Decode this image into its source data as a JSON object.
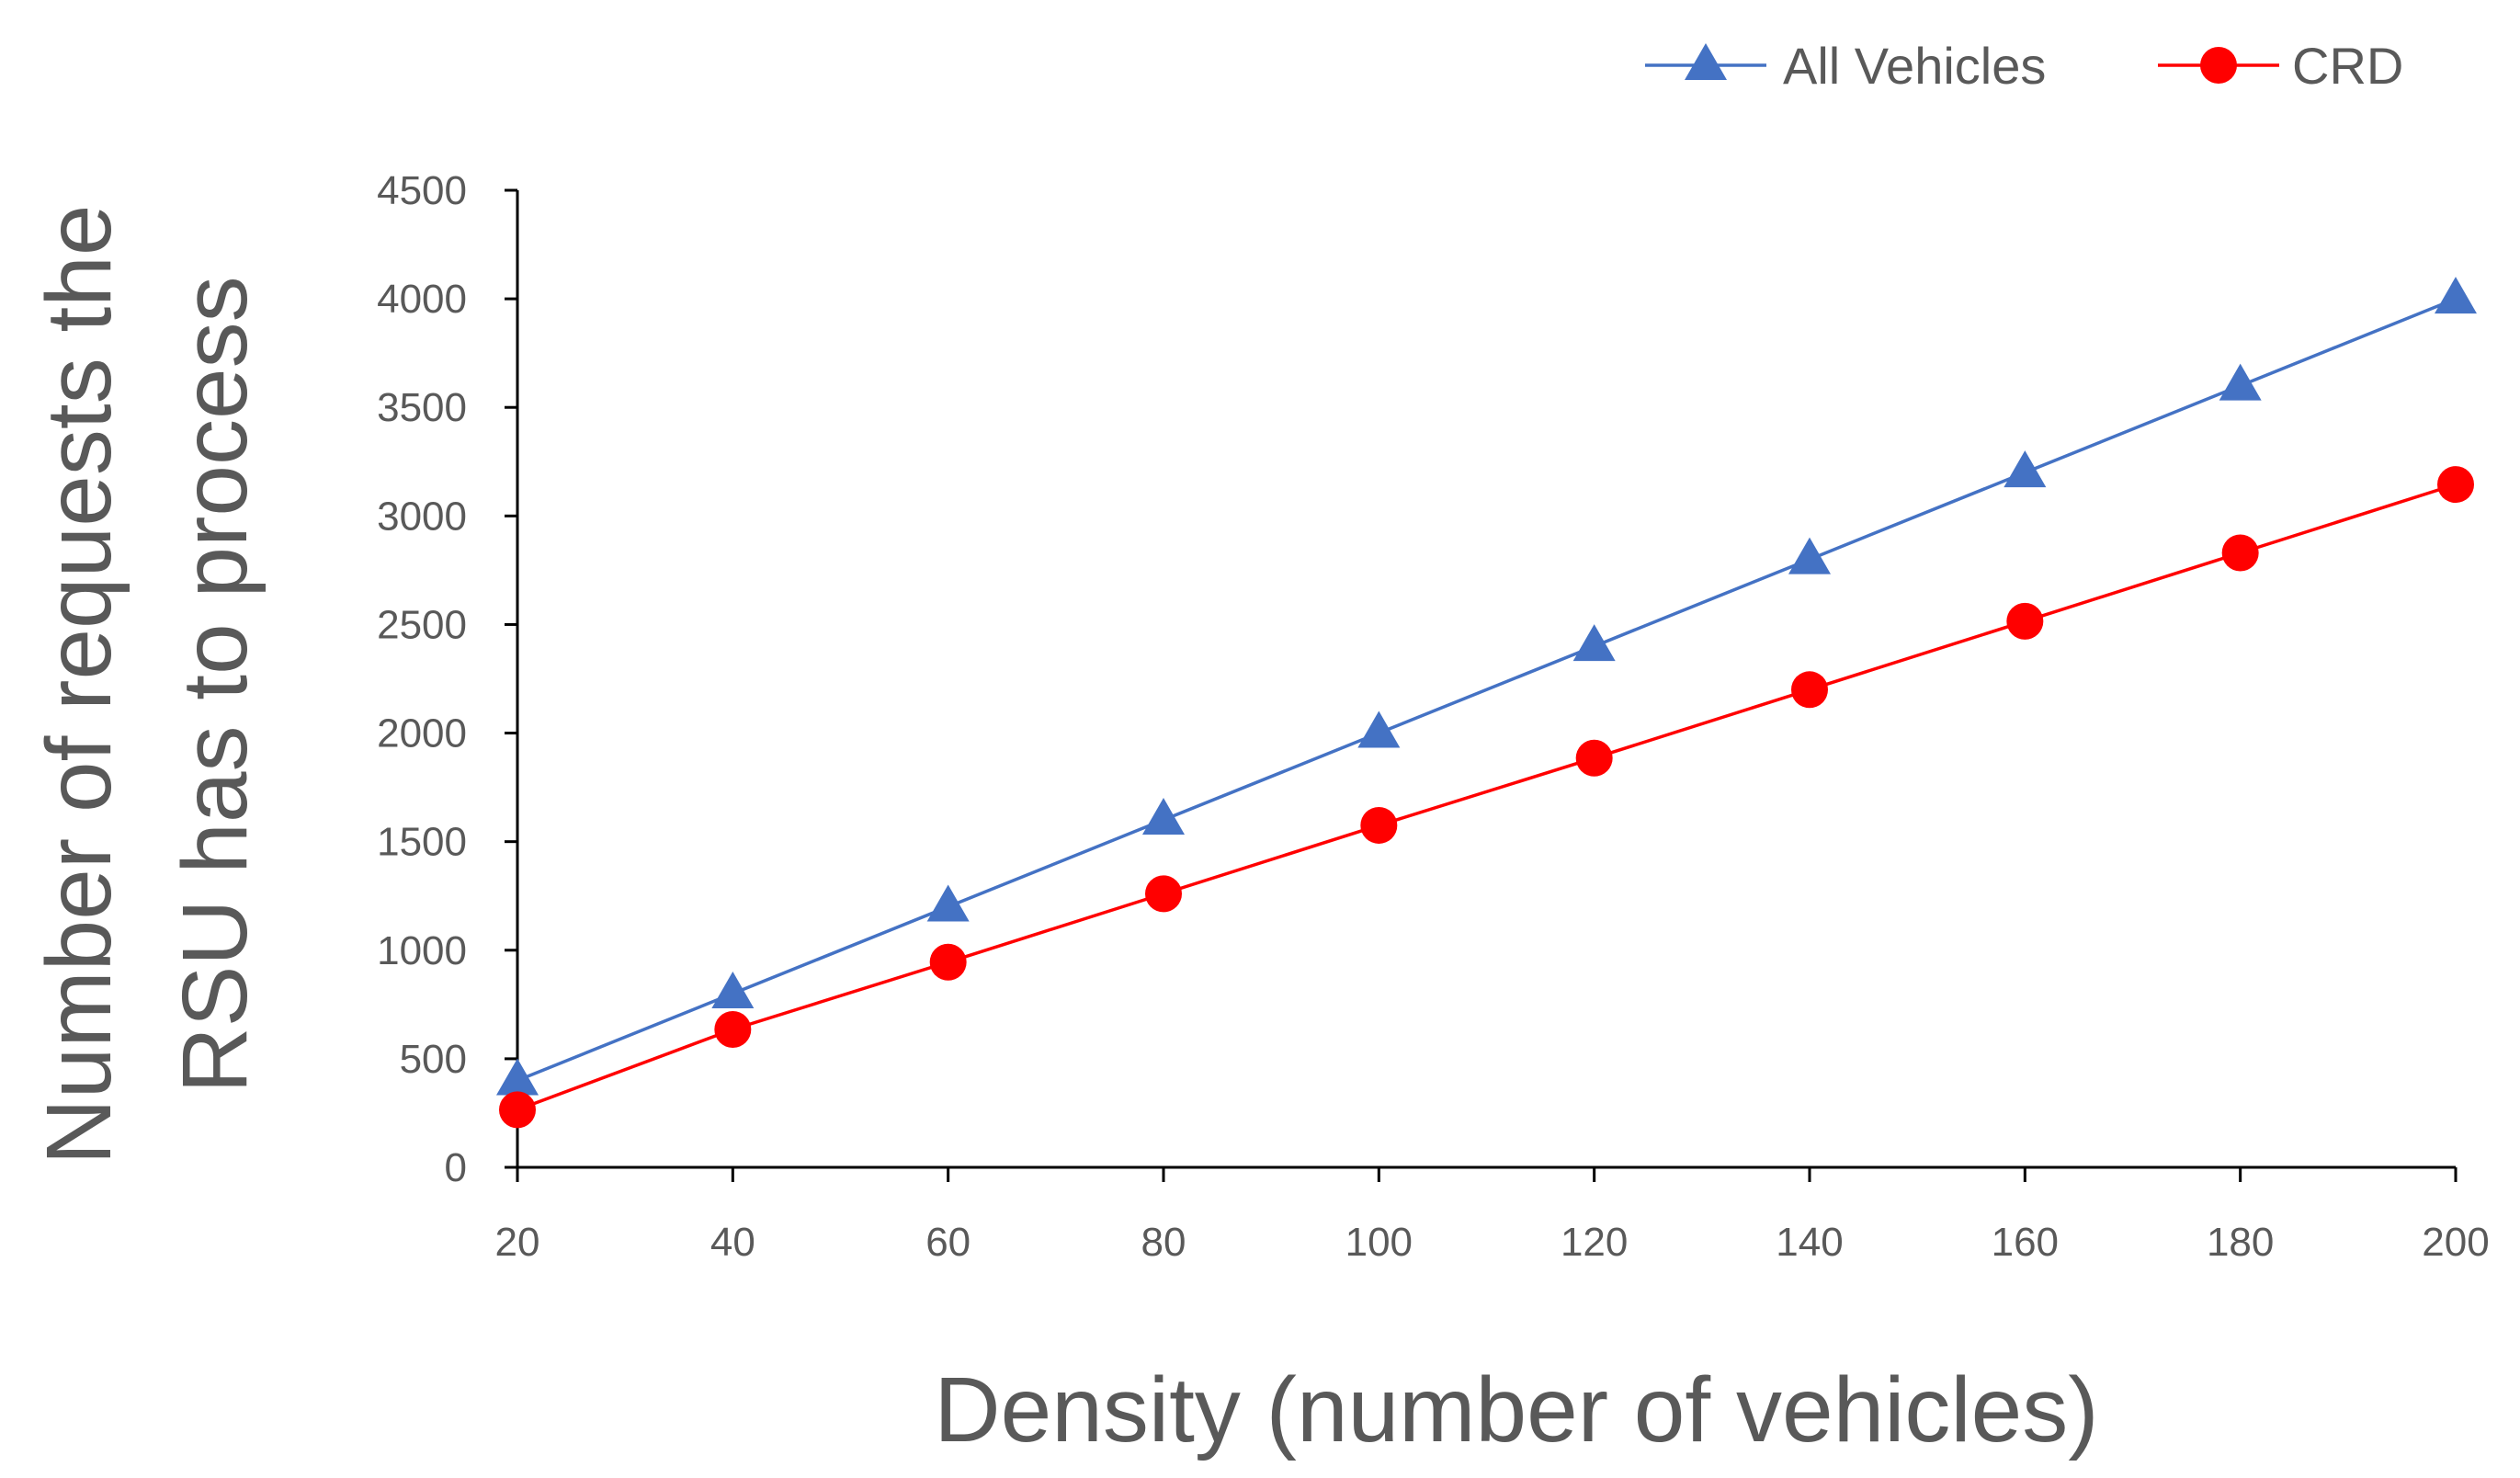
{
  "chart_data": {
    "type": "line",
    "x": [
      20,
      40,
      60,
      80,
      100,
      120,
      140,
      160,
      180,
      200
    ],
    "series": [
      {
        "name": "All Vehicles",
        "values": [
          400,
          800,
          1200,
          1600,
          2000,
          2400,
          2800,
          3200,
          3600,
          4000
        ],
        "color": "#4472C4",
        "marker": "triangle"
      },
      {
        "name": "CRD",
        "values": [
          265,
          635,
          945,
          1260,
          1575,
          1885,
          2200,
          2515,
          2830,
          3145
        ],
        "color": "#FF0000",
        "marker": "circle"
      }
    ],
    "title": "",
    "xlabel": "Density (number of vehicles)",
    "ylabel_line1": "Number of requests the",
    "ylabel_line2": "RSU has to process",
    "xlim": [
      20,
      200
    ],
    "ylim": [
      0,
      4500
    ],
    "x_ticks": [
      "20",
      "40",
      "60",
      "80",
      "100",
      "120",
      "140",
      "160",
      "180",
      "200"
    ],
    "y_ticks": [
      "0",
      "500",
      "1000",
      "1500",
      "2000",
      "2500",
      "3000",
      "3500",
      "4000",
      "4500"
    ],
    "grid": false,
    "legend_position": "top-right",
    "axis_color": "#000000",
    "text_color": "#595959"
  }
}
